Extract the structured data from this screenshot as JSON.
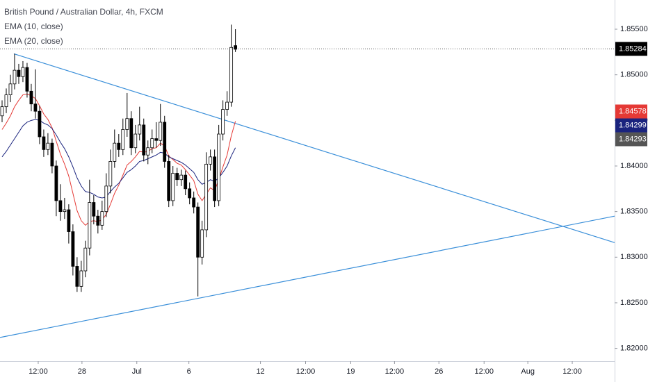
{
  "chart_data": {
    "type": "candlestick",
    "title": "British Pound / Australian Dollar, 4h, FXCM",
    "open": [
      1.8455,
      1.8465,
      1.8478,
      1.849,
      1.8505,
      1.8498,
      1.8508,
      1.8482,
      1.8468,
      1.846,
      1.8432,
      1.8418,
      1.8425,
      1.84,
      1.8362,
      1.835,
      1.8352,
      1.8328,
      1.829,
      1.8268,
      1.8285,
      1.831,
      1.836,
      1.8345,
      1.8335,
      1.835,
      1.8378,
      1.8405,
      1.8425,
      1.8418,
      1.844,
      1.8452,
      1.842,
      1.8435,
      1.8445,
      1.8412,
      1.842,
      1.843,
      1.8428,
      1.8448,
      1.8405,
      1.8362,
      1.8392,
      1.8385,
      1.839,
      1.8375,
      1.8365,
      1.8355,
      1.83,
      1.833,
      1.8402,
      1.841,
      1.8362,
      1.8435,
      1.8462,
      1.847,
      1.8532
    ],
    "high": [
      1.8472,
      1.8485,
      1.85,
      1.8523,
      1.8512,
      1.8515,
      1.8513,
      1.849,
      1.8506,
      1.8466,
      1.844,
      1.8436,
      1.843,
      1.8406,
      1.838,
      1.8365,
      1.8358,
      1.8336,
      1.83,
      1.8296,
      1.8318,
      1.8385,
      1.8368,
      1.8352,
      1.8362,
      1.8392,
      1.8418,
      1.844,
      1.8435,
      1.8452,
      1.848,
      1.846,
      1.8445,
      1.8465,
      1.8452,
      1.8428,
      1.844,
      1.8448,
      1.8468,
      1.8455,
      1.8412,
      1.84,
      1.8398,
      1.8396,
      1.8395,
      1.8382,
      1.8372,
      1.836,
      1.834,
      1.8415,
      1.8418,
      1.8418,
      1.8445,
      1.8472,
      1.8482,
      1.8555,
      1.855
    ],
    "low": [
      1.8448,
      1.8458,
      1.847,
      1.8484,
      1.849,
      1.8492,
      1.8475,
      1.846,
      1.8452,
      1.8424,
      1.841,
      1.8412,
      1.8392,
      1.8345,
      1.834,
      1.8342,
      1.8315,
      1.828,
      1.8262,
      1.8262,
      1.8278,
      1.8302,
      1.8336,
      1.8326,
      1.833,
      1.8344,
      1.837,
      1.8398,
      1.841,
      1.8412,
      1.8432,
      1.8412,
      1.8414,
      1.8428,
      1.8405,
      1.8402,
      1.8414,
      1.842,
      1.8422,
      1.8398,
      1.8355,
      1.8356,
      1.8378,
      1.8378,
      1.8368,
      1.8358,
      1.8348,
      1.8257,
      1.8292,
      1.8322,
      1.8395,
      1.8355,
      1.8356,
      1.8428,
      1.8455,
      1.8465,
      1.8525
    ],
    "close": [
      1.8465,
      1.8478,
      1.849,
      1.8505,
      1.8498,
      1.8508,
      1.8482,
      1.8468,
      1.846,
      1.8432,
      1.8418,
      1.8425,
      1.84,
      1.8362,
      1.835,
      1.8352,
      1.8328,
      1.829,
      1.8268,
      1.8285,
      1.831,
      1.836,
      1.8345,
      1.8335,
      1.835,
      1.8378,
      1.8405,
      1.8425,
      1.8418,
      1.844,
      1.8452,
      1.842,
      1.8435,
      1.8445,
      1.8412,
      1.842,
      1.843,
      1.8428,
      1.8448,
      1.8405,
      1.8362,
      1.8392,
      1.8385,
      1.839,
      1.8375,
      1.8365,
      1.8355,
      1.83,
      1.833,
      1.8402,
      1.841,
      1.8362,
      1.8435,
      1.8462,
      1.847,
      1.853,
      1.8528
    ],
    "up_color": "#ffffff",
    "down_color": "#000000",
    "series": [
      {
        "name": "EMA (10, close)",
        "color": "#e53935",
        "values": [
          1.844,
          1.8447,
          1.8455,
          1.8465,
          1.8472,
          1.8478,
          1.8479,
          1.8477,
          1.8474,
          1.8466,
          1.8457,
          1.8451,
          1.8442,
          1.8427,
          1.8413,
          1.8402,
          1.8389,
          1.837,
          1.8351,
          1.834,
          1.8335,
          1.8339,
          1.834,
          1.8339,
          1.8341,
          1.8347,
          1.8358,
          1.837,
          1.8379,
          1.839,
          1.8401,
          1.8405,
          1.841,
          1.8416,
          1.8415,
          1.8416,
          1.8419,
          1.842,
          1.8425,
          1.8422,
          1.8411,
          1.8407,
          1.8403,
          1.8401,
          1.8396,
          1.839,
          1.8384,
          1.8369,
          1.8362,
          1.8369,
          1.8376,
          1.8373,
          1.8385,
          1.8399,
          1.8412,
          1.8433,
          1.8449
        ]
      },
      {
        "name": "EMA (20, close)",
        "color": "#1a237e",
        "values": [
          1.841,
          1.8416,
          1.8423,
          1.843,
          1.8437,
          1.8444,
          1.8448,
          1.845,
          1.8451,
          1.845,
          1.8447,
          1.8445,
          1.8441,
          1.8434,
          1.8426,
          1.8419,
          1.841,
          1.8399,
          1.8387,
          1.8378,
          1.8372,
          1.8371,
          1.8369,
          1.8366,
          1.8365,
          1.8366,
          1.8372,
          1.8377,
          1.8381,
          1.8387,
          1.8393,
          1.8396,
          1.84,
          1.8405,
          1.8406,
          1.8408,
          1.841,
          1.8412,
          1.8415,
          1.8414,
          1.841,
          1.8408,
          1.8406,
          1.8404,
          1.8401,
          1.8397,
          1.8393,
          1.8385,
          1.838,
          1.8382,
          1.8385,
          1.8383,
          1.8387,
          1.8393,
          1.84,
          1.8411,
          1.842
        ]
      }
    ],
    "trendlines": [
      {
        "color": "#3a8fd9",
        "x": [
          2.83,
          147
        ],
        "y": [
          1.8523,
          1.8316
        ]
      },
      {
        "color": "#3a8fd9",
        "x": [
          -0.5,
          147
        ],
        "y": [
          1.8212,
          1.8345
        ]
      }
    ],
    "last_price": {
      "value": 1.85284,
      "label": "1.85284",
      "color": "#000000"
    },
    "price_labels": [
      {
        "value": 1.84578,
        "label": "1.84578",
        "color": "#e53935"
      },
      {
        "value": 1.84299,
        "label": "1.84299",
        "color": "#1a237e"
      },
      {
        "value": 1.84293,
        "label": "1.84293",
        "color": "#555555"
      }
    ],
    "xlim": [
      -0.5,
      147
    ],
    "xticks": [
      {
        "value": 8.67,
        "label": "12:00"
      },
      {
        "value": 19.17,
        "label": "28"
      },
      {
        "value": 32.33,
        "label": "Jul"
      },
      {
        "value": 44.83,
        "label": "6"
      },
      {
        "value": 62,
        "label": "12"
      },
      {
        "value": 72.83,
        "label": "12:00"
      },
      {
        "value": 83.67,
        "label": "19"
      },
      {
        "value": 94.17,
        "label": "12:00"
      },
      {
        "value": 104.83,
        "label": "26"
      },
      {
        "value": 115.67,
        "label": "12:00"
      },
      {
        "value": 126.17,
        "label": "Aug"
      },
      {
        "value": 136.83,
        "label": "12:00"
      }
    ],
    "ylim": [
      1.8186,
      1.8582
    ],
    "yticks": [
      {
        "value": 1.855,
        "label": "1.85500"
      },
      {
        "value": 1.85,
        "label": "1.85000"
      },
      {
        "value": 1.845,
        "label": "1.84500"
      },
      {
        "value": 1.84,
        "label": "1.84000"
      },
      {
        "value": 1.835,
        "label": "1.83500"
      },
      {
        "value": 1.83,
        "label": "1.83000"
      },
      {
        "value": 1.825,
        "label": "1.82500"
      },
      {
        "value": 1.82,
        "label": "1.82000"
      }
    ]
  }
}
